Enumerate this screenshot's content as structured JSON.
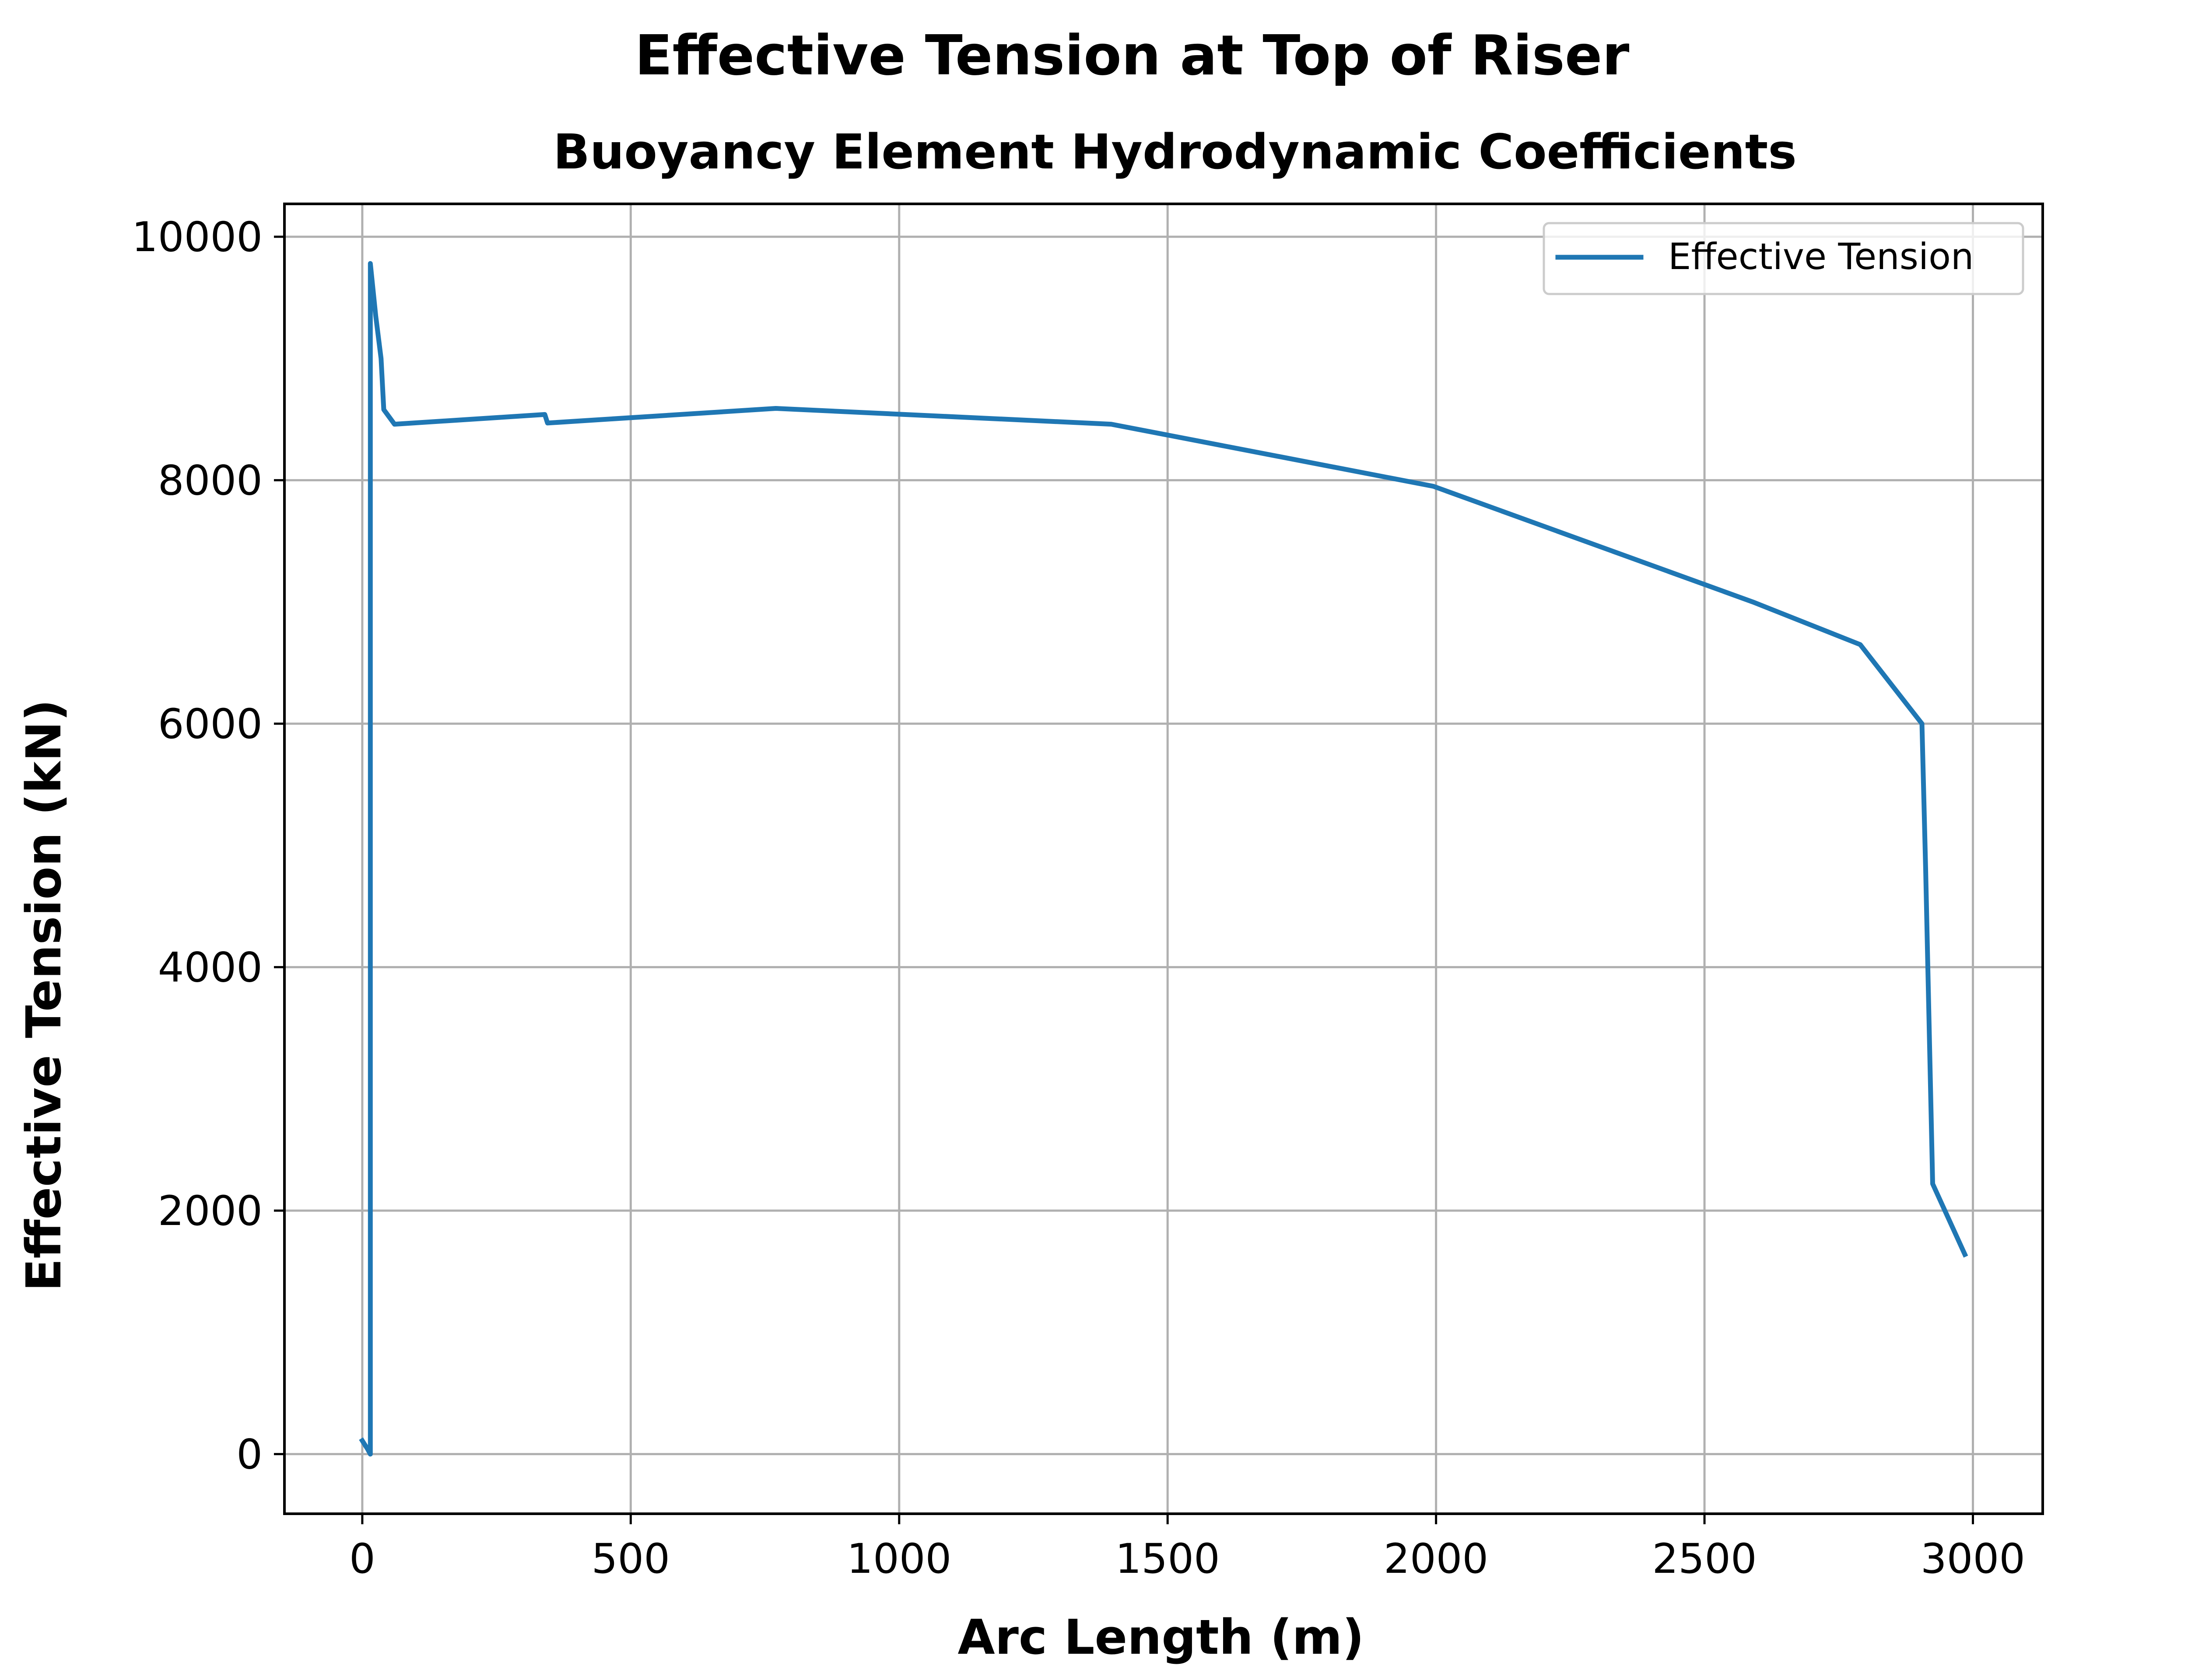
{
  "chart_data": {
    "type": "line",
    "title": "Effective Tension at Top of Riser",
    "subtitle": "Buoyancy Element Hydrodynamic Coefficients",
    "xlabel": "Arc Length (m)",
    "ylabel": "Effective Tension (kN)",
    "xlim": [
      -145,
      3130
    ],
    "ylim": [
      -490,
      10270
    ],
    "xticks": [
      0,
      500,
      1000,
      1500,
      2000,
      2500,
      3000
    ],
    "yticks": [
      0,
      2000,
      4000,
      6000,
      8000,
      10000
    ],
    "grid": true,
    "legend_position": "top-right",
    "colors": {
      "series": "#1f77b4",
      "grid": "#b0b0b0",
      "axes": "#000000"
    },
    "series": [
      {
        "name": "Effective Tension",
        "x": [
          0,
          10,
          15,
          15,
          25,
          35,
          40,
          60,
          340,
          345,
          770,
          1395,
          1995,
          2590,
          2790,
          2905,
          2912,
          2925,
          2985
        ],
        "y": [
          110,
          40,
          0,
          9780,
          9350,
          9000,
          8580,
          8460,
          8540,
          8470,
          8590,
          8460,
          7950,
          7000,
          6650,
          6000,
          4800,
          2220,
          1640
        ]
      }
    ]
  }
}
